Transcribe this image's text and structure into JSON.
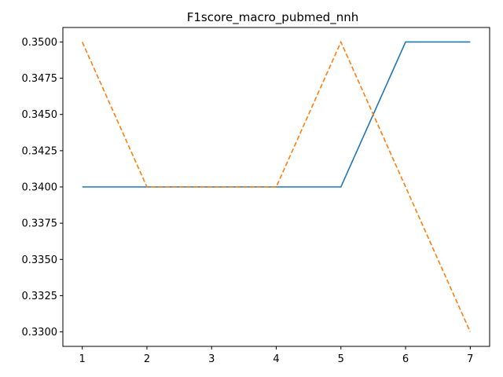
{
  "chart_data": {
    "type": "line",
    "title": "F1score_macro_pubmed_nnh",
    "xlabel": "",
    "ylabel": "",
    "x": [
      1,
      2,
      3,
      4,
      5,
      6,
      7
    ],
    "xticks": [
      "1",
      "2",
      "3",
      "4",
      "5",
      "6",
      "7"
    ],
    "yticks": [
      "0.3300",
      "0.3325",
      "0.3350",
      "0.3375",
      "0.3400",
      "0.3425",
      "0.3450",
      "0.3475",
      "0.3500"
    ],
    "xlim": [
      0.7,
      7.3
    ],
    "ylim": [
      0.329,
      0.351
    ],
    "grid": false,
    "legend": "none",
    "series": [
      {
        "values": [
          0.34,
          0.34,
          0.34,
          0.34,
          0.34,
          0.35,
          0.35
        ],
        "color": "#1f77b4",
        "style": "solid"
      },
      {
        "values": [
          0.35,
          0.34,
          0.34,
          0.34,
          0.35,
          0.34,
          0.33
        ],
        "color": "#ff7f0e",
        "style": "dashed"
      }
    ]
  }
}
